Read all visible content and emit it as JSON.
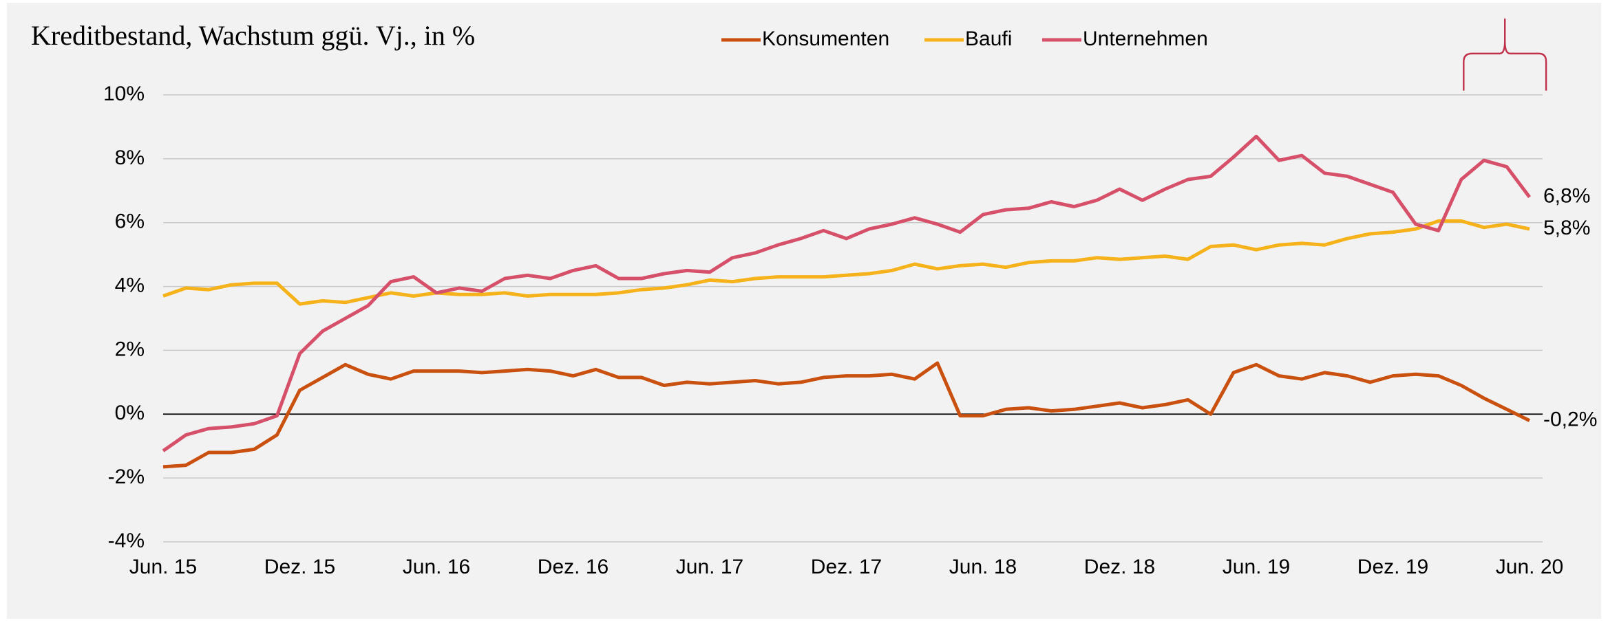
{
  "chart_data": {
    "type": "line",
    "title": "Kreditbestand, Wachstum ggü. Vj., in %",
    "categories": [
      "Jun. 15",
      null,
      null,
      null,
      null,
      null,
      "Dez. 15",
      null,
      null,
      null,
      null,
      null,
      "Jun. 16",
      null,
      null,
      null,
      null,
      null,
      "Dez. 16",
      null,
      null,
      null,
      null,
      null,
      "Jun. 17",
      null,
      null,
      null,
      null,
      null,
      "Dez. 17",
      null,
      null,
      null,
      null,
      null,
      "Jun. 18",
      null,
      null,
      null,
      null,
      null,
      "Dez. 18",
      null,
      null,
      null,
      null,
      null,
      "Jun. 19",
      null,
      null,
      null,
      null,
      null,
      "Dez. 19",
      null,
      null,
      null,
      null,
      null,
      "Jun. 20"
    ],
    "series": [
      {
        "name": "Konsumenten",
        "color": "#c9500e",
        "values": [
          -1.65,
          -1.6,
          -1.2,
          -1.2,
          -1.1,
          -0.65,
          0.75,
          1.15,
          1.55,
          1.25,
          1.1,
          1.35,
          1.35,
          1.35,
          1.3,
          1.35,
          1.4,
          1.35,
          1.2,
          1.4,
          1.15,
          1.15,
          0.9,
          1.0,
          0.95,
          1.0,
          1.05,
          0.95,
          1.0,
          1.15,
          1.2,
          1.2,
          1.25,
          1.1,
          1.6,
          -0.05,
          -0.05,
          0.15,
          0.2,
          0.1,
          0.15,
          0.25,
          0.35,
          0.2,
          0.3,
          0.45,
          0.0,
          1.3,
          1.55,
          1.2,
          1.1,
          1.3,
          1.2,
          1.0,
          1.2,
          1.25,
          1.2,
          0.9,
          0.5,
          0.15,
          -0.2
        ],
        "value_labels": [
          null,
          null,
          null,
          null,
          null,
          null,
          null,
          null,
          null,
          null,
          null,
          null,
          null,
          null,
          null,
          null,
          null,
          null,
          null,
          null,
          null,
          null,
          null,
          null,
          null,
          null,
          null,
          null,
          null,
          null,
          null,
          null,
          null,
          null,
          null,
          null,
          null,
          null,
          null,
          null,
          null,
          null,
          null,
          null,
          null,
          null,
          null,
          null,
          null,
          null,
          null,
          null,
          null,
          null,
          null,
          null,
          null,
          null,
          null,
          null,
          "-0,2%"
        ]
      },
      {
        "name": "Baufi",
        "color": "#f5b21b",
        "values": [
          3.7,
          3.95,
          3.9,
          4.05,
          4.1,
          4.1,
          3.45,
          3.55,
          3.5,
          3.65,
          3.8,
          3.7,
          3.8,
          3.75,
          3.75,
          3.8,
          3.7,
          3.75,
          3.75,
          3.75,
          3.8,
          3.9,
          3.95,
          4.05,
          4.2,
          4.15,
          4.25,
          4.3,
          4.3,
          4.3,
          4.35,
          4.4,
          4.5,
          4.7,
          4.55,
          4.65,
          4.7,
          4.6,
          4.75,
          4.8,
          4.8,
          4.9,
          4.85,
          4.9,
          4.95,
          4.85,
          5.25,
          5.3,
          5.15,
          5.3,
          5.35,
          5.3,
          5.5,
          5.65,
          5.7,
          5.8,
          6.05,
          6.05,
          5.85,
          5.95,
          5.8
        ],
        "value_labels": [
          null,
          null,
          null,
          null,
          null,
          null,
          null,
          null,
          null,
          null,
          null,
          null,
          null,
          null,
          null,
          null,
          null,
          null,
          null,
          null,
          null,
          null,
          null,
          null,
          null,
          null,
          null,
          null,
          null,
          null,
          null,
          null,
          null,
          null,
          null,
          null,
          null,
          null,
          null,
          null,
          null,
          null,
          null,
          null,
          null,
          null,
          null,
          null,
          null,
          null,
          null,
          null,
          null,
          null,
          null,
          null,
          null,
          null,
          null,
          null,
          "5,8%"
        ]
      },
      {
        "name": "Unternehmen",
        "color": "#d6506a",
        "values": [
          -1.15,
          -0.65,
          -0.45,
          -0.4,
          -0.3,
          -0.05,
          1.9,
          2.6,
          3.0,
          3.4,
          4.15,
          4.3,
          3.8,
          3.95,
          3.85,
          4.25,
          4.35,
          4.25,
          4.5,
          4.65,
          4.25,
          4.25,
          4.4,
          4.5,
          4.45,
          4.9,
          5.05,
          5.3,
          5.5,
          5.75,
          5.5,
          5.8,
          5.95,
          6.15,
          5.95,
          5.7,
          6.25,
          6.4,
          6.45,
          6.65,
          6.5,
          6.7,
          7.05,
          6.7,
          7.05,
          7.35,
          7.45,
          8.05,
          8.7,
          7.95,
          8.1,
          7.55,
          7.45,
          7.2,
          6.95,
          5.95,
          5.75,
          7.35,
          7.95,
          7.75,
          6.8
        ],
        "value_labels": [
          null,
          null,
          null,
          null,
          null,
          null,
          null,
          null,
          null,
          null,
          null,
          null,
          null,
          null,
          null,
          null,
          null,
          null,
          null,
          null,
          null,
          null,
          null,
          null,
          null,
          null,
          null,
          null,
          null,
          null,
          null,
          null,
          null,
          null,
          null,
          null,
          null,
          null,
          null,
          null,
          null,
          null,
          null,
          null,
          null,
          null,
          null,
          null,
          null,
          null,
          null,
          null,
          null,
          null,
          null,
          null,
          null,
          null,
          null,
          null,
          "6,8%"
        ]
      }
    ],
    "ylim": [
      -4,
      10
    ],
    "yticks": [
      {
        "value": -4,
        "label": "-4%"
      },
      {
        "value": -2,
        "label": "-2%"
      },
      {
        "value": 0,
        "label": "0%"
      },
      {
        "value": 2,
        "label": "2%"
      },
      {
        "value": 4,
        "label": "4%"
      },
      {
        "value": 6,
        "label": "6%"
      },
      {
        "value": 8,
        "label": "8%"
      },
      {
        "value": 10,
        "label": "10%"
      }
    ],
    "grid": true,
    "legend": "top"
  }
}
